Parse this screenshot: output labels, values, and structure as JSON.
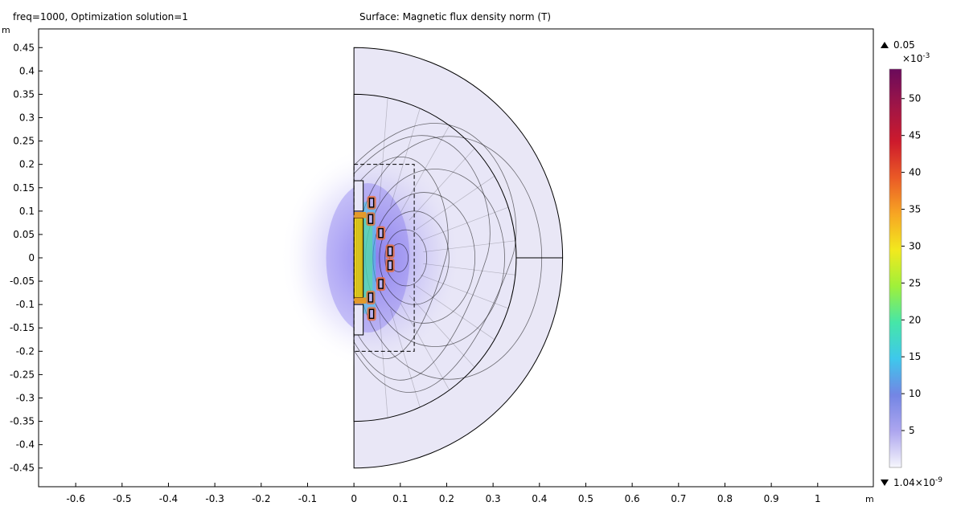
{
  "header": {
    "left_title": "freq=1000, Optimization solution=1",
    "center_title": "Surface: Magnetic flux density norm (T)"
  },
  "chart_data": {
    "type": "heatmap",
    "title": "Surface: Magnetic flux density norm (T)",
    "subtitle": "freq=1000, Optimization solution=1",
    "xlabel": "m",
    "ylabel": "m",
    "xlim": [
      -0.68,
      1.12
    ],
    "ylim": [
      -0.49,
      0.49
    ],
    "x_ticks": [
      -0.6,
      -0.5,
      -0.4,
      -0.3,
      -0.2,
      -0.1,
      0,
      0.1,
      0.2,
      0.3,
      0.4,
      0.5,
      0.6,
      0.7,
      0.8,
      0.9,
      1
    ],
    "y_ticks": [
      0.45,
      0.4,
      0.35,
      0.3,
      0.25,
      0.2,
      0.15,
      0.1,
      0.05,
      0,
      -0.05,
      -0.1,
      -0.15,
      -0.2,
      -0.25,
      -0.3,
      -0.35,
      -0.4,
      -0.45
    ],
    "grid": false,
    "geometry": {
      "outer_radius": 0.45,
      "inner_radius": 0.35,
      "core": {
        "r_min": 0,
        "r_max": 0.02,
        "z_min": -0.085,
        "z_max": 0.085
      },
      "box": {
        "r_min": 0,
        "r_max": 0.13,
        "z_min": -0.2,
        "z_max": 0.2
      },
      "coils": [
        {
          "r": 0.038,
          "z": 0.118
        },
        {
          "r": 0.036,
          "z": 0.083
        },
        {
          "r": 0.058,
          "z": 0.053
        },
        {
          "r": 0.078,
          "z": 0.014
        },
        {
          "r": 0.078,
          "z": -0.016
        },
        {
          "r": 0.058,
          "z": -0.056
        },
        {
          "r": 0.036,
          "z": -0.085
        },
        {
          "r": 0.038,
          "z": -0.12
        }
      ]
    },
    "colorbar": {
      "max_label": "0.05",
      "min_label": "1.04×10",
      "min_exp": "-9",
      "scale_label": "×10",
      "scale_exp": "-3",
      "ticks": [
        5,
        10,
        15,
        20,
        25,
        30,
        35,
        40,
        45,
        50
      ],
      "range": [
        0,
        54
      ],
      "colors": [
        "#f6f6fc",
        "#ada6ef",
        "#7385e4",
        "#3ec8ec",
        "#46e6a8",
        "#9ff03a",
        "#f2e91e",
        "#f7a623",
        "#ea5a26",
        "#cd1a2c",
        "#9e1547",
        "#6a0a5b"
      ]
    }
  }
}
